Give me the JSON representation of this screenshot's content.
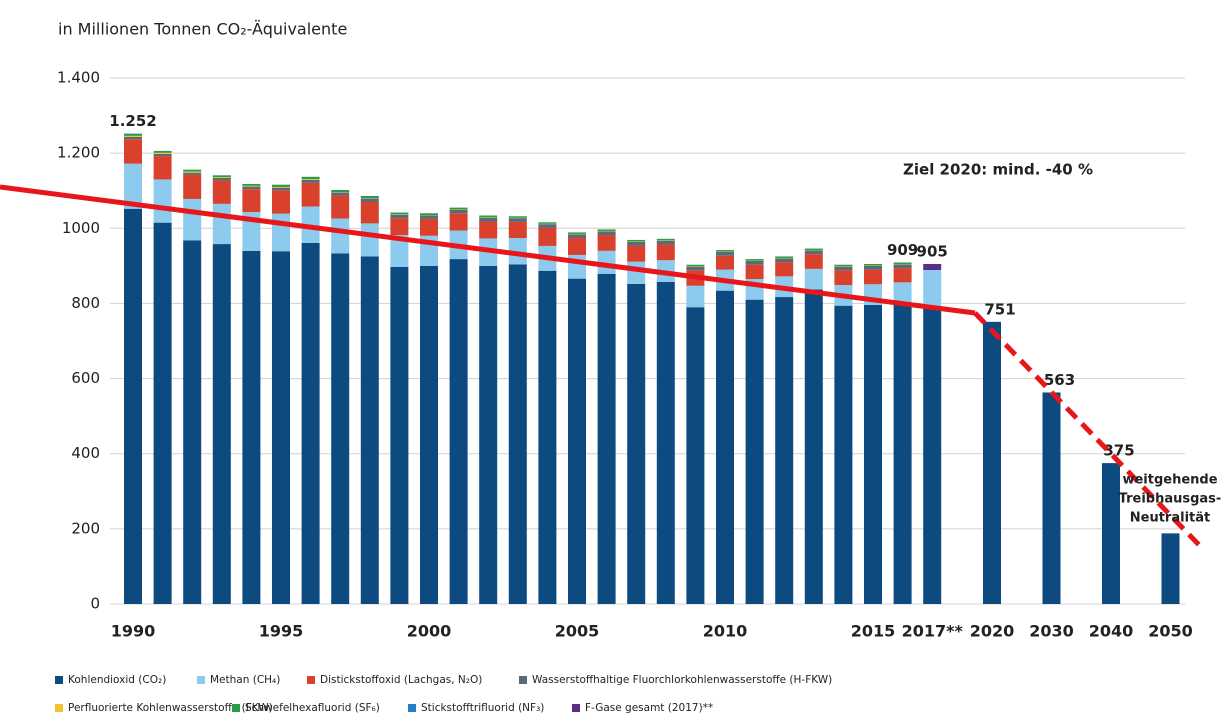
{
  "chart_data": {
    "type": "stacked_bar",
    "title": "in Millionen Tonnen CO₂-Äquivalente",
    "annotation": "Ziel 2020: mind. -40 %",
    "target_note": [
      "weitgehende",
      "Treibhausgas-",
      "Neutralität"
    ],
    "categories": [
      "1990",
      null,
      null,
      null,
      null,
      "1995",
      null,
      null,
      null,
      null,
      "2000",
      null,
      null,
      null,
      null,
      "2005",
      null,
      null,
      null,
      null,
      "2010",
      null,
      null,
      null,
      null,
      "2015",
      null,
      "2017**",
      "2020",
      "2030",
      "2040",
      "2050"
    ],
    "ylim": [
      0,
      1400
    ],
    "yticks": [
      0,
      200,
      400,
      600,
      800,
      1000,
      {
        "value": 1200,
        "label": "1.200"
      },
      {
        "value": 1400,
        "label": "1.400"
      }
    ],
    "grid": true,
    "value_labels": [
      "1.252",
      null,
      null,
      null,
      null,
      null,
      null,
      null,
      null,
      null,
      null,
      null,
      null,
      null,
      null,
      null,
      null,
      null,
      null,
      null,
      null,
      null,
      null,
      null,
      null,
      null,
      "909",
      "905",
      "751",
      "563",
      "375",
      null
    ],
    "series": [
      {
        "name": "Kohlendioxid (CO₂)",
        "color": "#0d4a80",
        "values": [
          1052,
          1015,
          968,
          958,
          940,
          939,
          961,
          933,
          925,
          897,
          900,
          918,
          900,
          904,
          887,
          866,
          879,
          852,
          857,
          790,
          834,
          810,
          817,
          837,
          794,
          796,
          801,
          787,
          751,
          563,
          375,
          188
        ]
      },
      {
        "name": "Methan (CH₄)",
        "color": "#8ccbee",
        "values": [
          120,
          115,
          110,
          107,
          103,
          100,
          97,
          93,
          88,
          85,
          80,
          76,
          73,
          70,
          66,
          63,
          61,
          59,
          58,
          57,
          56,
          55,
          55,
          55,
          55,
          55,
          55,
          102,
          null,
          null,
          null,
          null
        ]
      },
      {
        "name": "Distickstoffoxid (Lachgas, N₂O)",
        "color": "#d9412d",
        "values": [
          65,
          62,
          64,
          62,
          61,
          62,
          63,
          61,
          57,
          45,
          45,
          46,
          45,
          43,
          48,
          45,
          42,
          43,
          42,
          41,
          37,
          38,
          38,
          39,
          39,
          39,
          38,
          null,
          null,
          null,
          null,
          null
        ]
      },
      {
        "name": "Wasserstoffhaltige Fluorchlorkohlenwasserstoffe (H-FKW)",
        "color": "#5a6a78",
        "values": [
          6,
          6,
          6,
          7,
          7,
          7,
          8,
          8,
          9,
          9,
          9,
          9,
          10,
          10,
          10,
          10,
          10,
          10,
          10,
          10,
          10,
          10,
          10,
          10,
          10,
          10,
          10,
          null,
          null,
          null,
          null,
          null
        ]
      },
      {
        "name": "Perfluorierte Kohlenwasserstoffe (FKW)",
        "color": "#f2c12e",
        "values": [
          3,
          3,
          3,
          2,
          2,
          2,
          2,
          1,
          1,
          1,
          1,
          1,
          1,
          1,
          1,
          1,
          1,
          1,
          1,
          1,
          1,
          1,
          1,
          1,
          1,
          1,
          1,
          null,
          null,
          null,
          null,
          null
        ]
      },
      {
        "name": "Schwefelhexafluorid (SF₆)",
        "color": "#2e9a47",
        "values": [
          5,
          5,
          5,
          5,
          5,
          6,
          6,
          6,
          6,
          5,
          5,
          5,
          5,
          4,
          4,
          4,
          4,
          4,
          4,
          4,
          4,
          4,
          4,
          4,
          4,
          4,
          4,
          null,
          null,
          null,
          null,
          null
        ]
      },
      {
        "name": "Stickstofftrifluorid (NF₃)",
        "color": "#2a7fc0",
        "values": [
          1,
          0,
          0,
          0,
          0,
          0,
          0,
          0,
          0,
          0,
          0,
          0,
          0,
          0,
          0,
          0,
          0,
          0,
          0,
          0,
          0,
          0,
          0,
          0,
          0,
          0,
          0,
          null,
          null,
          null,
          null,
          null
        ]
      },
      {
        "name": "F-Gase gesamt (2017)**",
        "color": "#5b2d86",
        "values": [
          null,
          null,
          null,
          null,
          null,
          null,
          null,
          null,
          null,
          null,
          null,
          null,
          null,
          null,
          null,
          null,
          null,
          null,
          null,
          null,
          null,
          null,
          null,
          null,
          null,
          null,
          null,
          16,
          null,
          null,
          null,
          null
        ]
      }
    ]
  }
}
